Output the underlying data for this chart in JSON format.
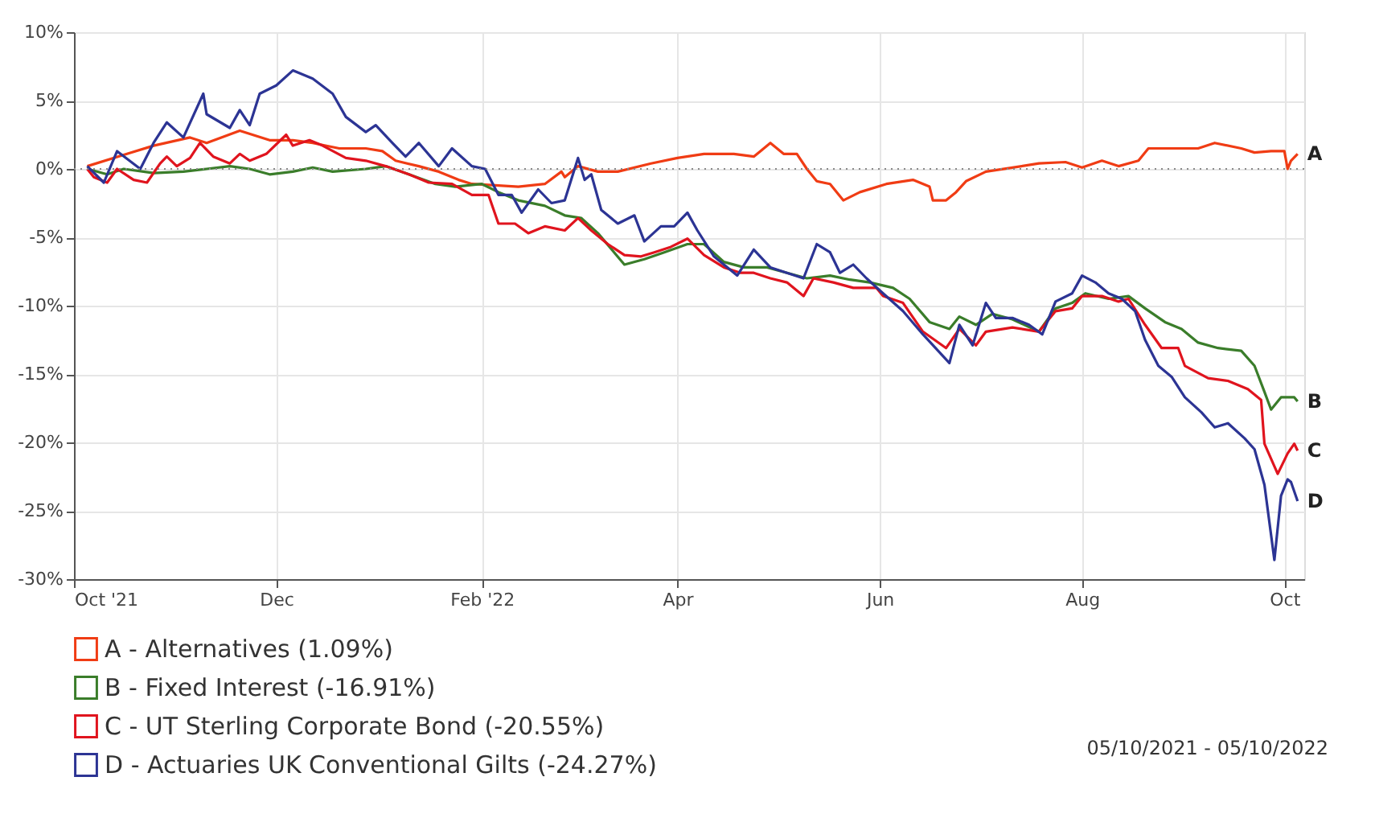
{
  "chart_data": {
    "type": "line",
    "xlim": [
      "2021-10-01",
      "2022-10-07"
    ],
    "xticks": [
      {
        "value": "2021-10-01",
        "label": "Oct '21"
      },
      {
        "value": "2021-12-01",
        "label": "Dec"
      },
      {
        "value": "2022-02-01",
        "label": "Feb '22"
      },
      {
        "value": "2022-04-01",
        "label": "Apr"
      },
      {
        "value": "2022-06-01",
        "label": "Jun"
      },
      {
        "value": "2022-08-01",
        "label": "Aug"
      },
      {
        "value": "2022-10-01",
        "label": "Oct"
      }
    ],
    "ylim": [
      -30,
      10
    ],
    "yticks": [
      {
        "value": -30,
        "label": "-30%"
      },
      {
        "value": -25,
        "label": "-25%"
      },
      {
        "value": -20,
        "label": "-20%"
      },
      {
        "value": -15,
        "label": "-15%"
      },
      {
        "value": -10,
        "label": "-10%"
      },
      {
        "value": -5,
        "label": "-5%"
      },
      {
        "value": 0,
        "label": "0%"
      },
      {
        "value": 5,
        "label": "5%"
      },
      {
        "value": 10,
        "label": "10%"
      }
    ],
    "grid": true,
    "legend": "bottom",
    "marker": "none",
    "line_style": "solid",
    "ref_lines": [
      {
        "axis": "y",
        "value": 0,
        "color": "#888888",
        "line_style": "dotted"
      }
    ],
    "annotations": [
      {
        "text": "A",
        "x": "2022-10-05",
        "y": 1.1
      },
      {
        "text": "B",
        "x": "2022-10-05",
        "y": -17
      },
      {
        "text": "C",
        "x": "2022-10-05",
        "y": -20.6
      },
      {
        "text": "D",
        "x": "2022-10-05",
        "y": -24.3
      },
      "05/10/2021 - 05/10/2022"
    ],
    "series": [
      {
        "name": "A - Alternatives (1.09%)",
        "color": "#f03c14",
        "x": [
          "2021-10-05",
          "2021-10-17",
          "2021-10-25",
          "2021-11-05",
          "2021-11-10",
          "2021-11-20",
          "2021-11-29",
          "2021-12-06",
          "2021-12-12",
          "2021-12-20",
          "2021-12-28",
          "2022-01-02",
          "2022-01-06",
          "2022-01-13",
          "2022-01-19",
          "2022-01-25",
          "2022-01-29",
          "2022-02-12",
          "2022-02-20",
          "2022-02-25",
          "2022-02-26",
          "2022-03-02",
          "2022-03-08",
          "2022-03-14",
          "2022-03-24",
          "2022-04-01",
          "2022-04-09",
          "2022-04-18",
          "2022-04-24",
          "2022-04-26",
          "2022-04-29",
          "2022-05-03",
          "2022-05-07",
          "2022-05-10",
          "2022-05-13",
          "2022-05-17",
          "2022-05-21",
          "2022-05-26",
          "2022-06-03",
          "2022-06-11",
          "2022-06-16",
          "2022-06-17",
          "2022-06-21",
          "2022-06-24",
          "2022-06-27",
          "2022-07-03",
          "2022-07-11",
          "2022-07-19",
          "2022-07-27",
          "2022-08-01",
          "2022-08-07",
          "2022-08-12",
          "2022-08-18",
          "2022-08-21",
          "2022-08-28",
          "2022-09-05",
          "2022-09-10",
          "2022-09-18",
          "2022-09-22",
          "2022-09-27",
          "2022-10-01",
          "2022-10-02",
          "2022-10-03",
          "2022-10-05"
        ],
        "values": [
          0.2,
          1.1,
          1.7,
          2.3,
          1.9,
          2.8,
          2.1,
          2.1,
          1.9,
          1.5,
          1.5,
          1.3,
          0.6,
          0.2,
          -0.2,
          -0.8,
          -1.1,
          -1.3,
          -1.1,
          -0.2,
          -0.6,
          0.2,
          -0.2,
          -0.2,
          0.4,
          0.8,
          1.1,
          1.1,
          0.9,
          1.3,
          1.9,
          1.1,
          1.1,
          0,
          -0.9,
          -1.1,
          -2.3,
          -1.7,
          -1.1,
          -0.8,
          -1.3,
          -2.3,
          -2.3,
          -1.7,
          -0.9,
          -0.2,
          0.1,
          0.4,
          0.5,
          0.1,
          0.6,
          0.2,
          0.6,
          1.5,
          1.5,
          1.5,
          1.9,
          1.5,
          1.2,
          1.3,
          1.3,
          0,
          0.6,
          1.1
        ]
      },
      {
        "name": "B - Fixed Interest (-16.91%)",
        "color": "#3a7d2a",
        "x": [
          "2021-10-05",
          "2021-10-11",
          "2021-10-16",
          "2021-10-25",
          "2021-11-03",
          "2021-11-10",
          "2021-11-17",
          "2021-11-23",
          "2021-11-29",
          "2021-12-06",
          "2021-12-12",
          "2021-12-18",
          "2021-12-28",
          "2022-01-03",
          "2022-01-10",
          "2022-01-18",
          "2022-01-24",
          "2022-02-01",
          "2022-02-06",
          "2022-02-12",
          "2022-02-20",
          "2022-02-26",
          "2022-03-03",
          "2022-03-08",
          "2022-03-16",
          "2022-03-22",
          "2022-03-28",
          "2022-04-04",
          "2022-04-09",
          "2022-04-15",
          "2022-04-21",
          "2022-04-28",
          "2022-05-04",
          "2022-05-10",
          "2022-05-17",
          "2022-05-23",
          "2022-05-29",
          "2022-06-05",
          "2022-06-10",
          "2022-06-16",
          "2022-06-22",
          "2022-06-25",
          "2022-06-30",
          "2022-07-05",
          "2022-07-11",
          "2022-07-19",
          "2022-07-24",
          "2022-07-29",
          "2022-08-02",
          "2022-08-09",
          "2022-08-15",
          "2022-08-20",
          "2022-08-26",
          "2022-08-31",
          "2022-09-05",
          "2022-09-11",
          "2022-09-18",
          "2022-09-22",
          "2022-09-25",
          "2022-09-27",
          "2022-09-30",
          "2022-10-04",
          "2022-10-05"
        ],
        "values": [
          0,
          -0.4,
          0,
          -0.3,
          -0.2,
          0,
          0.2,
          0,
          -0.4,
          -0.2,
          0.1,
          -0.2,
          0,
          0.2,
          -0.4,
          -1.1,
          -1.3,
          -1.1,
          -1.7,
          -2.3,
          -2.7,
          -3.4,
          -3.6,
          -4.7,
          -7,
          -6.6,
          -6.1,
          -5.5,
          -5.5,
          -6.8,
          -7.2,
          -7.2,
          -7.6,
          -8,
          -7.8,
          -8.1,
          -8.3,
          -8.7,
          -9.5,
          -11.2,
          -11.7,
          -10.8,
          -11.4,
          -10.6,
          -11,
          -11.9,
          -10.2,
          -9.8,
          -9.1,
          -9.5,
          -9.3,
          -10.2,
          -11.2,
          -11.7,
          -12.7,
          -13.1,
          -13.3,
          -14.4,
          -16.3,
          -17.6,
          -16.7,
          -16.7,
          -17
        ]
      },
      {
        "name": "C - UT Sterling Corporate Bond (-20.55%)",
        "color": "#e0141e",
        "x": [
          "2021-10-05",
          "2021-10-07",
          "2021-10-11",
          "2021-10-14",
          "2021-10-19",
          "2021-10-23",
          "2021-10-27",
          "2021-10-29",
          "2021-11-01",
          "2021-11-05",
          "2021-11-08",
          "2021-11-12",
          "2021-11-17",
          "2021-11-20",
          "2021-11-23",
          "2021-11-28",
          "2021-12-04",
          "2021-12-06",
          "2021-12-11",
          "2021-12-15",
          "2021-12-22",
          "2021-12-28",
          "2022-01-03",
          "2022-01-10",
          "2022-01-16",
          "2022-01-23",
          "2022-01-29",
          "2022-02-03",
          "2022-02-06",
          "2022-02-11",
          "2022-02-15",
          "2022-02-20",
          "2022-02-26",
          "2022-03-02",
          "2022-03-06",
          "2022-03-11",
          "2022-03-16",
          "2022-03-21",
          "2022-03-25",
          "2022-03-30",
          "2022-04-04",
          "2022-04-09",
          "2022-04-15",
          "2022-04-20",
          "2022-04-24",
          "2022-04-29",
          "2022-05-04",
          "2022-05-09",
          "2022-05-12",
          "2022-05-18",
          "2022-05-24",
          "2022-05-31",
          "2022-06-02",
          "2022-06-08",
          "2022-06-14",
          "2022-06-21",
          "2022-06-25",
          "2022-06-30",
          "2022-07-03",
          "2022-07-11",
          "2022-07-19",
          "2022-07-24",
          "2022-07-29",
          "2022-08-01",
          "2022-08-07",
          "2022-08-12",
          "2022-08-15",
          "2022-08-20",
          "2022-08-25",
          "2022-08-30",
          "2022-09-01",
          "2022-09-08",
          "2022-09-14",
          "2022-09-20",
          "2022-09-24",
          "2022-09-25",
          "2022-09-29",
          "2022-10-02",
          "2022-10-04",
          "2022-10-05"
        ],
        "values": [
          0,
          -0.6,
          -1,
          0,
          -0.8,
          -1,
          0.4,
          0.9,
          0.2,
          0.8,
          1.9,
          0.9,
          0.4,
          1.1,
          0.6,
          1.1,
          2.5,
          1.7,
          2.1,
          1.7,
          0.8,
          0.6,
          0.2,
          -0.4,
          -1,
          -1.1,
          -1.9,
          -1.9,
          -4,
          -4,
          -4.7,
          -4.2,
          -4.5,
          -3.6,
          -4.5,
          -5.5,
          -6.3,
          -6.4,
          -6.1,
          -5.7,
          -5.1,
          -6.3,
          -7.2,
          -7.6,
          -7.6,
          -8,
          -8.3,
          -9.3,
          -8,
          -8.3,
          -8.7,
          -8.7,
          -9.3,
          -9.8,
          -11.9,
          -13.1,
          -11.7,
          -12.9,
          -11.9,
          -11.6,
          -11.9,
          -10.4,
          -10.2,
          -9.3,
          -9.3,
          -9.7,
          -9.5,
          -11.4,
          -13.1,
          -13.1,
          -14.4,
          -15.3,
          -15.5,
          -16.1,
          -16.9,
          -20.1,
          -22.3,
          -20.8,
          -20.1,
          -20.6
        ]
      },
      {
        "name": "D - Actuaries UK Conventional Gilts (-24.27%)",
        "color": "#2c3494",
        "x": [
          "2021-10-05",
          "2021-10-10",
          "2021-10-14",
          "2021-10-21",
          "2021-10-25",
          "2021-10-29",
          "2021-11-03",
          "2021-11-09",
          "2021-11-10",
          "2021-11-17",
          "2021-11-20",
          "2021-11-23",
          "2021-11-26",
          "2021-12-01",
          "2021-12-06",
          "2021-12-12",
          "2021-12-18",
          "2021-12-22",
          "2021-12-28",
          "2021-12-31",
          "2022-01-05",
          "2022-01-09",
          "2022-01-13",
          "2022-01-19",
          "2022-01-23",
          "2022-01-29",
          "2022-02-02",
          "2022-02-06",
          "2022-02-10",
          "2022-02-13",
          "2022-02-18",
          "2022-02-22",
          "2022-02-26",
          "2022-03-02",
          "2022-03-04",
          "2022-03-06",
          "2022-03-09",
          "2022-03-14",
          "2022-03-19",
          "2022-03-22",
          "2022-03-27",
          "2022-03-31",
          "2022-04-04",
          "2022-04-07",
          "2022-04-12",
          "2022-04-19",
          "2022-04-24",
          "2022-04-29",
          "2022-05-04",
          "2022-05-09",
          "2022-05-13",
          "2022-05-17",
          "2022-05-20",
          "2022-05-24",
          "2022-05-28",
          "2022-06-02",
          "2022-06-08",
          "2022-06-14",
          "2022-06-22",
          "2022-06-25",
          "2022-06-29",
          "2022-07-03",
          "2022-07-06",
          "2022-07-11",
          "2022-07-16",
          "2022-07-20",
          "2022-07-24",
          "2022-07-29",
          "2022-08-01",
          "2022-08-05",
          "2022-08-09",
          "2022-08-13",
          "2022-08-17",
          "2022-08-20",
          "2022-08-24",
          "2022-08-28",
          "2022-09-01",
          "2022-09-06",
          "2022-09-10",
          "2022-09-14",
          "2022-09-19",
          "2022-09-22",
          "2022-09-25",
          "2022-09-28",
          "2022-09-30",
          "2022-10-02",
          "2022-10-03",
          "2022-10-05"
        ],
        "values": [
          0.2,
          -1,
          1.3,
          0,
          1.9,
          3.4,
          2.3,
          5.5,
          4,
          3,
          4.3,
          3.2,
          5.5,
          6.1,
          7.2,
          6.6,
          5.5,
          3.8,
          2.7,
          3.2,
          1.9,
          0.9,
          1.9,
          0.2,
          1.5,
          0.2,
          0,
          -1.9,
          -1.9,
          -3.2,
          -1.5,
          -2.5,
          -2.3,
          0.8,
          -0.8,
          -0.4,
          -3,
          -4,
          -3.4,
          -5.3,
          -4.2,
          -4.2,
          -3.2,
          -4.5,
          -6.4,
          -7.8,
          -5.9,
          -7.2,
          -7.6,
          -8,
          -5.5,
          -6.1,
          -7.6,
          -7,
          -8,
          -9.1,
          -10.4,
          -12.1,
          -14.2,
          -11.4,
          -12.9,
          -9.8,
          -10.9,
          -10.9,
          -11.4,
          -12.1,
          -9.7,
          -9.1,
          -7.8,
          -8.3,
          -9.1,
          -9.5,
          -10.4,
          -12.5,
          -14.4,
          -15.2,
          -16.7,
          -17.8,
          -18.9,
          -18.6,
          -19.7,
          -20.5,
          -23.1,
          -28.6,
          -23.9,
          -22.7,
          -22.9,
          -24.3
        ]
      }
    ]
  }
}
